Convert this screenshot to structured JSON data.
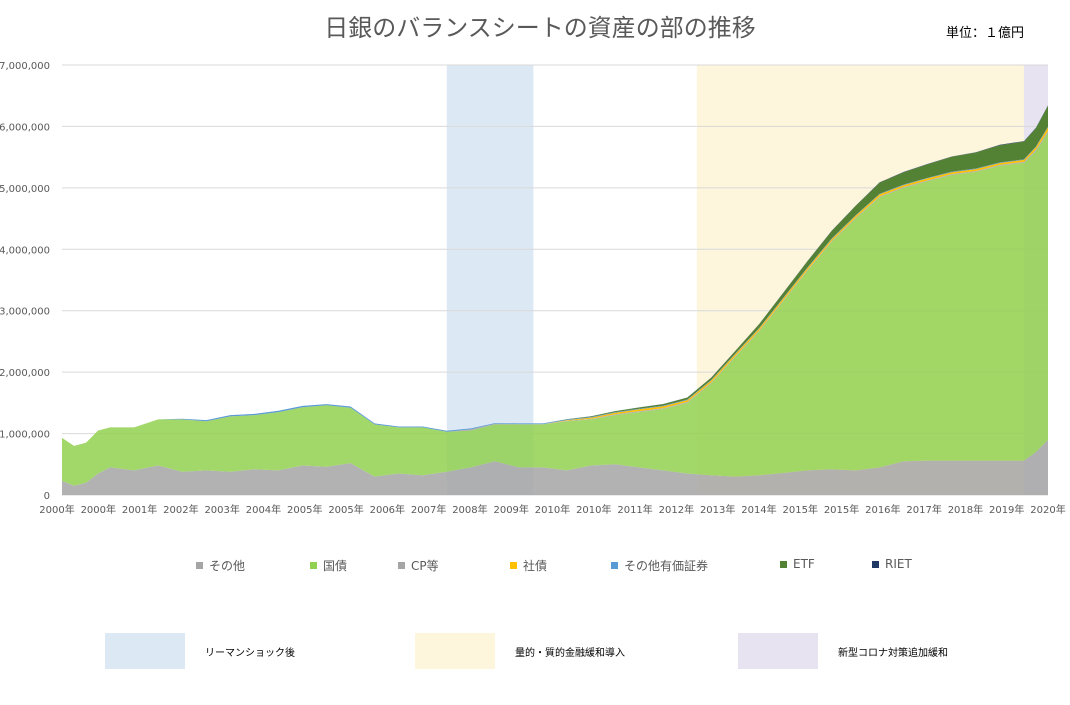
{
  "title": "日銀のバランスシートの資産の部の推移",
  "unit": "単位：１億円",
  "colors": {
    "other": "#a5a5a5",
    "jgb": "#92d050",
    "cp": "#a5a5a5",
    "corporate_bonds": "#ffc000",
    "other_securities": "#5b9bd5",
    "etf": "#548235",
    "reit": "#1f3864",
    "lehman_band": "#dce9f5",
    "qqe_band": "#fdf6dc",
    "corona_band": "#e8e3f0"
  },
  "legend": [
    {
      "label": "その他",
      "color": "#a5a5a5"
    },
    {
      "label": "国債",
      "color": "#92d050"
    },
    {
      "label": "CP等",
      "color": "#a5a5a5"
    },
    {
      "label": "社債",
      "color": "#ffc000"
    },
    {
      "label": "その他有価証券",
      "color": "#5b9bd5"
    },
    {
      "label": "ETF",
      "color": "#548235"
    },
    {
      "label": "RIET",
      "color": "#1f3864"
    }
  ],
  "bands": [
    {
      "label": "リーマンショック後",
      "color": "#dce9f5"
    },
    {
      "label": "量的・質的金融緩和導入",
      "color": "#fdf6dc"
    },
    {
      "label": "新型コロナ対策追加緩和",
      "color": "#e8e3f0"
    }
  ],
  "chart_data": {
    "type": "area",
    "stacked": true,
    "title": "日銀のバランスシートの資産の部の推移",
    "xlabel": "",
    "ylabel": "",
    "ylim": [
      0,
      7000000
    ],
    "yticks": [
      "0",
      "1,000,000",
      "2,000,000",
      "3,000,000",
      "4,000,000",
      "5,000,000",
      "6,000,000",
      "7,000,000"
    ],
    "grid": true,
    "legend_position": "bottom",
    "x_tick_labels": [
      "2000年",
      "2000年",
      "2001年",
      "2002年",
      "2003年",
      "2004年",
      "2005年",
      "2005年",
      "2006年",
      "2007年",
      "2008年",
      "2009年",
      "2010年",
      "2010年",
      "2011年",
      "2012年",
      "2013年",
      "2014年",
      "2015年",
      "2015年",
      "2016年",
      "2017年",
      "2018年",
      "2019年",
      "2020年"
    ],
    "x": [
      2000.0,
      2000.25,
      2000.5,
      2000.75,
      2001.0,
      2001.5,
      2002.0,
      2002.5,
      2003.0,
      2003.5,
      2004.0,
      2004.5,
      2005.0,
      2005.5,
      2006.0,
      2006.5,
      2007.0,
      2007.5,
      2008.0,
      2008.5,
      2009.0,
      2009.5,
      2010.0,
      2010.5,
      2011.0,
      2011.5,
      2012.0,
      2012.5,
      2013.0,
      2013.5,
      2014.0,
      2014.5,
      2015.0,
      2015.5,
      2016.0,
      2016.5,
      2017.0,
      2017.5,
      2018.0,
      2018.5,
      2019.0,
      2019.5,
      2020.0,
      2020.25,
      2020.5
    ],
    "series": [
      {
        "name": "その他",
        "values": [
          230000,
          150000,
          200000,
          350000,
          450000,
          400000,
          480000,
          380000,
          400000,
          380000,
          420000,
          400000,
          480000,
          460000,
          520000,
          300000,
          350000,
          320000,
          380000,
          450000,
          550000,
          450000,
          450000,
          400000,
          480000,
          500000,
          450000,
          400000,
          350000,
          320000,
          300000,
          320000,
          360000,
          400000,
          420000,
          400000,
          450000,
          550000,
          560000,
          560000,
          560000,
          560000,
          560000,
          700000,
          900000
        ]
      },
      {
        "name": "国債",
        "values": [
          700000,
          650000,
          650000,
          700000,
          650000,
          700000,
          750000,
          850000,
          800000,
          900000,
          880000,
          950000,
          950000,
          1000000,
          900000,
          850000,
          750000,
          780000,
          650000,
          600000,
          600000,
          700000,
          700000,
          800000,
          750000,
          800000,
          900000,
          1000000,
          1150000,
          1500000,
          1950000,
          2350000,
          2800000,
          3250000,
          3700000,
          4100000,
          4400000,
          4450000,
          4550000,
          4650000,
          4700000,
          4800000,
          4850000,
          4900000,
          5000000
        ]
      },
      {
        "name": "CP等",
        "values": [
          0,
          0,
          0,
          0,
          0,
          0,
          0,
          0,
          0,
          0,
          0,
          0,
          0,
          0,
          0,
          0,
          0,
          0,
          0,
          20000,
          10000,
          5000,
          5000,
          10000,
          10000,
          15000,
          15000,
          15000,
          15000,
          15000,
          15000,
          15000,
          15000,
          15000,
          15000,
          15000,
          15000,
          15000,
          15000,
          15000,
          15000,
          15000,
          15000,
          25000,
          25000
        ]
      },
      {
        "name": "社債",
        "values": [
          0,
          0,
          0,
          0,
          0,
          0,
          0,
          0,
          0,
          0,
          0,
          0,
          0,
          0,
          0,
          0,
          0,
          0,
          0,
          0,
          0,
          0,
          0,
          10000,
          20000,
          25000,
          30000,
          30000,
          30000,
          30000,
          30000,
          30000,
          30000,
          30000,
          30000,
          30000,
          30000,
          30000,
          30000,
          30000,
          30000,
          30000,
          30000,
          40000,
          60000
        ]
      },
      {
        "name": "その他有価証券",
        "values": [
          0,
          0,
          0,
          0,
          0,
          0,
          0,
          10000,
          20000,
          20000,
          20000,
          20000,
          20000,
          20000,
          20000,
          15000,
          15000,
          15000,
          15000,
          15000,
          10000,
          10000,
          10000,
          10000,
          10000,
          10000,
          10000,
          10000,
          10000,
          10000,
          10000,
          10000,
          10000,
          10000,
          10000,
          10000,
          10000,
          10000,
          10000,
          10000,
          10000,
          10000,
          10000,
          10000,
          10000
        ]
      },
      {
        "name": "ETF",
        "values": [
          0,
          0,
          0,
          0,
          0,
          0,
          0,
          0,
          0,
          0,
          0,
          0,
          0,
          0,
          0,
          0,
          0,
          0,
          0,
          0,
          0,
          0,
          0,
          5000,
          10000,
          15000,
          20000,
          25000,
          30000,
          35000,
          40000,
          60000,
          80000,
          100000,
          120000,
          150000,
          180000,
          200000,
          220000,
          240000,
          260000,
          280000,
          290000,
          300000,
          340000
        ]
      },
      {
        "name": "RIET",
        "values": [
          0,
          0,
          0,
          0,
          0,
          0,
          0,
          0,
          0,
          0,
          0,
          0,
          0,
          0,
          0,
          0,
          0,
          0,
          0,
          0,
          0,
          0,
          0,
          1000,
          1000,
          1500,
          1500,
          2000,
          2000,
          2000,
          2500,
          3000,
          3000,
          3500,
          4000,
          4500,
          5000,
          5000,
          5500,
          5500,
          6000,
          6000,
          6000,
          6500,
          7000
        ]
      }
    ],
    "shaded_periods": [
      {
        "label": "リーマンショック後",
        "start": 2008.0,
        "end": 2009.8
      },
      {
        "label": "量的・質的金融緩和導入",
        "start": 2013.2,
        "end": 2020.0
      },
      {
        "label": "新型コロナ対策追加緩和",
        "start": 2020.0,
        "end": 2020.5
      }
    ]
  }
}
